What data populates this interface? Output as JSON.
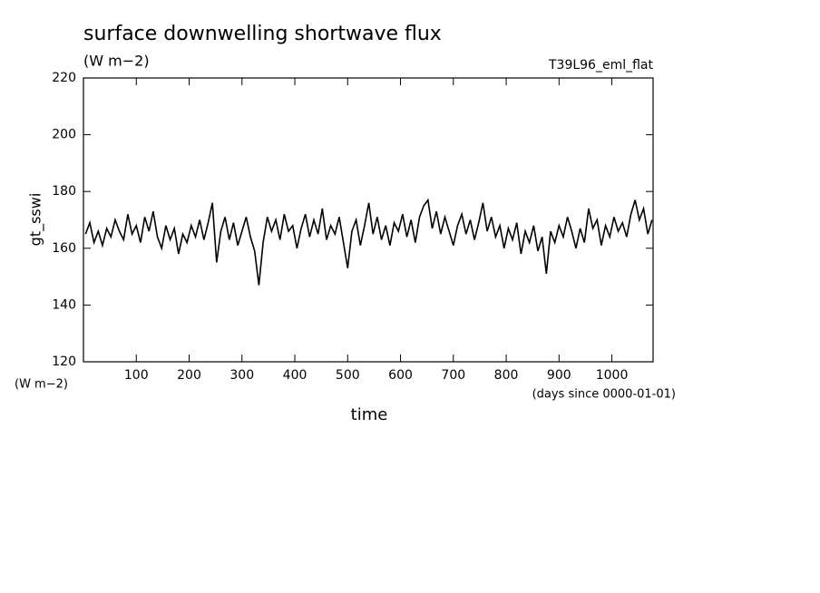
{
  "chart_data": {
    "type": "line",
    "title": "surface downwelling shortwave flux",
    "subtitle": "(W m−2)",
    "annotation": "T39L96_eml_flat",
    "y_label": "gt_sswi",
    "y_unit": "(W m−2)",
    "x_label": "time",
    "x_unit": "(days since 0000-01-01)",
    "xlim": [
      0,
      1078
    ],
    "xticks": [
      100,
      200,
      300,
      400,
      500,
      600,
      700,
      800,
      900,
      1000
    ],
    "ylim": [
      120,
      220
    ],
    "yticks": [
      120,
      140,
      160,
      180,
      200,
      220
    ],
    "series": [
      {
        "name": "gt_sswi",
        "color": "#000000",
        "x": [
          4,
          12,
          20,
          28,
          36,
          44,
          52,
          60,
          68,
          76,
          84,
          92,
          100,
          108,
          116,
          124,
          132,
          140,
          148,
          156,
          164,
          172,
          180,
          188,
          196,
          204,
          212,
          220,
          228,
          236,
          244,
          252,
          260,
          268,
          276,
          284,
          292,
          300,
          308,
          316,
          324,
          332,
          340,
          348,
          356,
          364,
          372,
          380,
          388,
          396,
          404,
          412,
          420,
          428,
          436,
          444,
          452,
          460,
          468,
          476,
          484,
          492,
          500,
          508,
          516,
          524,
          532,
          540,
          548,
          556,
          564,
          572,
          580,
          588,
          596,
          604,
          612,
          620,
          628,
          636,
          644,
          652,
          660,
          668,
          676,
          684,
          692,
          700,
          708,
          716,
          724,
          732,
          740,
          748,
          756,
          764,
          772,
          780,
          788,
          796,
          804,
          812,
          820,
          828,
          836,
          844,
          852,
          860,
          868,
          876,
          884,
          892,
          900,
          908,
          916,
          924,
          932,
          940,
          948,
          956,
          964,
          972,
          980,
          988,
          996,
          1004,
          1012,
          1020,
          1028,
          1036,
          1044,
          1052,
          1060,
          1068,
          1076
        ],
        "values": [
          165,
          169,
          162,
          166,
          161,
          167,
          164,
          170,
          166,
          163,
          172,
          165,
          168,
          162,
          171,
          166,
          173,
          164,
          160,
          168,
          163,
          167,
          158,
          165,
          162,
          168,
          164,
          170,
          163,
          169,
          176,
          155,
          166,
          171,
          163,
          169,
          161,
          166,
          171,
          164,
          159,
          147,
          162,
          171,
          166,
          170,
          163,
          172,
          166,
          168,
          160,
          167,
          172,
          164,
          170,
          165,
          174,
          163,
          168,
          165,
          171,
          162,
          153,
          166,
          170,
          161,
          168,
          176,
          165,
          171,
          163,
          168,
          161,
          169,
          166,
          172,
          164,
          170,
          162,
          171,
          175,
          177,
          167,
          173,
          165,
          171,
          166,
          161,
          168,
          172,
          165,
          170,
          163,
          169,
          176,
          166,
          171,
          164,
          168,
          160,
          167,
          163,
          169,
          158,
          166,
          162,
          168,
          159,
          164,
          151,
          166,
          162,
          168,
          164,
          171,
          166,
          160,
          167,
          162,
          174,
          167,
          170,
          161,
          168,
          164,
          171,
          166,
          169,
          164,
          172,
          177,
          170,
          174,
          165,
          170
        ]
      }
    ]
  }
}
